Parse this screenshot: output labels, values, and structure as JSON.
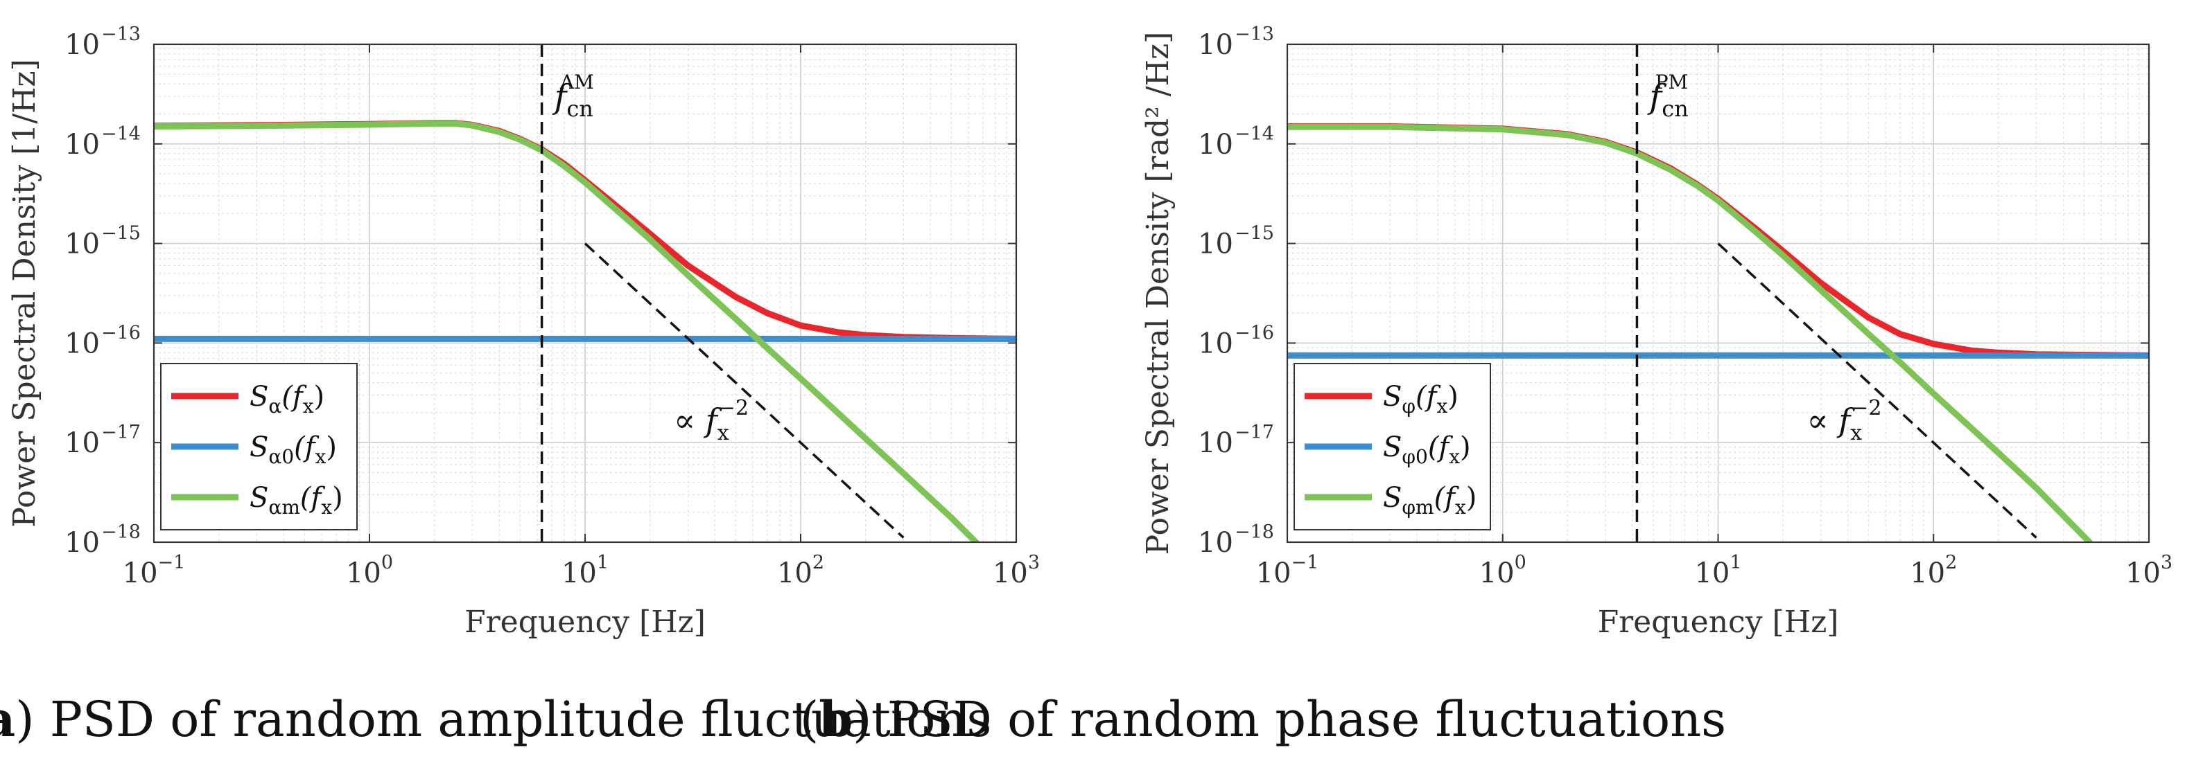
{
  "figure": {
    "panels": [
      {
        "caption_letter": "a",
        "caption_text": "PSD of random amplitude fluctuations"
      },
      {
        "caption_letter": "b",
        "caption_text": "PSD of random phase fluctuations"
      }
    ]
  },
  "chart_data": [
    {
      "type": "line",
      "xscale": "log",
      "yscale": "log",
      "xlim": [
        0.1,
        1000
      ],
      "ylim": [
        1e-18,
        1e-13
      ],
      "xlabel": "Frequency [Hz]",
      "ylabel": "Power Spectral Density [1/Hz]",
      "xticks": [
        0.1,
        1,
        10,
        100,
        1000
      ],
      "xtick_labels": [
        {
          "base": "10",
          "exp": "−1"
        },
        {
          "base": "10",
          "exp": "0"
        },
        {
          "base": "10",
          "exp": "1"
        },
        {
          "base": "10",
          "exp": "2"
        },
        {
          "base": "10",
          "exp": "3"
        }
      ],
      "yticks": [
        1e-18,
        1e-17,
        1e-16,
        1e-15,
        1e-14,
        1e-13
      ],
      "ytick_labels": [
        {
          "base": "10",
          "exp": "−18"
        },
        {
          "base": "10",
          "exp": "−17"
        },
        {
          "base": "10",
          "exp": "−16"
        },
        {
          "base": "10",
          "exp": "−15"
        },
        {
          "base": "10",
          "exp": "−14"
        },
        {
          "base": "10",
          "exp": "−13"
        }
      ],
      "grid": true,
      "legend_position": "bottom-left",
      "corner_frequency": 6.3,
      "corner_label": {
        "main": "f",
        "sub": "cn",
        "sup": "AM"
      },
      "slope_label": {
        "prefix": "∝ ",
        "main": "f",
        "sub": "x",
        "sup": "−2"
      },
      "slope_line": {
        "x": [
          10,
          300
        ],
        "y": [
          1e-15,
          1.11e-18
        ]
      },
      "series": [
        {
          "name": "S_α(f_x)",
          "legend": {
            "main": "S",
            "sub": "α",
            "arg": "(f",
            "argsub": "x",
            "close": ")"
          },
          "color": "#e8262b",
          "x": [
            0.1,
            0.3,
            1,
            2,
            2.5,
            3,
            4,
            5,
            6.3,
            8,
            10,
            15,
            20,
            30,
            50,
            70,
            100,
            150,
            200,
            300,
            500,
            1000
          ],
          "y": [
            1.52e-14,
            1.54e-14,
            1.58e-14,
            1.62e-14,
            1.62e-14,
            1.55e-14,
            1.35e-14,
            1.12e-14,
            8.8e-15,
            6.3e-15,
            4.3e-15,
            2.1e-15,
            1.25e-15,
            6e-16,
            2.9e-16,
            2e-16,
            1.5e-16,
            1.28e-16,
            1.2e-16,
            1.15e-16,
            1.12e-16,
            1.1e-16
          ]
        },
        {
          "name": "S_α0(f_x)",
          "legend": {
            "main": "S",
            "sub": "α0",
            "arg": "(f",
            "argsub": "x",
            "close": ")"
          },
          "color": "#3b8fd0",
          "x": [
            0.1,
            1000
          ],
          "y": [
            1.1e-16,
            1.1e-16
          ]
        },
        {
          "name": "S_αm(f_x)",
          "legend": {
            "main": "S",
            "sub": "αm",
            "arg": "(f",
            "argsub": "x",
            "close": ")"
          },
          "color": "#7dc355",
          "x": [
            0.1,
            0.3,
            1,
            2,
            2.5,
            3,
            4,
            5,
            6.3,
            8,
            10,
            15,
            20,
            30,
            50,
            70,
            100,
            200,
            300,
            500,
            650
          ],
          "y": [
            1.5e-14,
            1.52e-14,
            1.56e-14,
            1.6e-14,
            1.6e-14,
            1.53e-14,
            1.32e-14,
            1.1e-14,
            8.6e-15,
            6e-15,
            4.1e-15,
            1.9e-15,
            1.1e-15,
            4.8e-16,
            1.75e-16,
            8.9e-17,
            4.4e-17,
            1.1e-17,
            4.9e-18,
            1.76e-18,
            1e-18
          ]
        }
      ]
    },
    {
      "type": "line",
      "xscale": "log",
      "yscale": "log",
      "xlim": [
        0.1,
        1000
      ],
      "ylim": [
        1e-18,
        1e-13
      ],
      "xlabel": "Frequency [Hz]",
      "ylabel": "Power Spectral Density [rad² /Hz]",
      "xticks": [
        0.1,
        1,
        10,
        100,
        1000
      ],
      "xtick_labels": [
        {
          "base": "10",
          "exp": "−1"
        },
        {
          "base": "10",
          "exp": "0"
        },
        {
          "base": "10",
          "exp": "1"
        },
        {
          "base": "10",
          "exp": "2"
        },
        {
          "base": "10",
          "exp": "3"
        }
      ],
      "yticks": [
        1e-18,
        1e-17,
        1e-16,
        1e-15,
        1e-14,
        1e-13
      ],
      "ytick_labels": [
        {
          "base": "10",
          "exp": "−18"
        },
        {
          "base": "10",
          "exp": "−17"
        },
        {
          "base": "10",
          "exp": "−16"
        },
        {
          "base": "10",
          "exp": "−15"
        },
        {
          "base": "10",
          "exp": "−14"
        },
        {
          "base": "10",
          "exp": "−13"
        }
      ],
      "grid": true,
      "legend_position": "bottom-left",
      "corner_frequency": 4.2,
      "corner_label": {
        "main": "f",
        "sub": "cn",
        "sup": "PM"
      },
      "slope_label": {
        "prefix": "∝ ",
        "main": "f",
        "sub": "x",
        "sup": "−2"
      },
      "slope_line": {
        "x": [
          10,
          300
        ],
        "y": [
          1e-15,
          1.11e-18
        ]
      },
      "series": [
        {
          "name": "S_φ(f_x)",
          "legend": {
            "main": "S",
            "sub": "φ",
            "arg": "(f",
            "argsub": "x",
            "close": ")"
          },
          "color": "#e8262b",
          "x": [
            0.1,
            0.3,
            1,
            2,
            3,
            4.2,
            6,
            8,
            10,
            15,
            20,
            30,
            50,
            70,
            100,
            150,
            200,
            300,
            500,
            1000
          ],
          "y": [
            1.5e-14,
            1.5e-14,
            1.42e-14,
            1.25e-14,
            1.05e-14,
            8.2e-15,
            5.7e-15,
            3.9e-15,
            2.8e-15,
            1.4e-15,
            8.4e-16,
            4e-16,
            1.8e-16,
            1.23e-16,
            9.8e-17,
            8.4e-17,
            8e-17,
            7.7e-17,
            7.6e-17,
            7.5e-17
          ]
        },
        {
          "name": "S_φ0(f_x)",
          "legend": {
            "main": "S",
            "sub": "φ0",
            "arg": "(f",
            "argsub": "x",
            "close": ")"
          },
          "color": "#3b8fd0",
          "x": [
            0.1,
            1000
          ],
          "y": [
            7.5e-17,
            7.5e-17
          ]
        },
        {
          "name": "S_φm(f_x)",
          "legend": {
            "main": "S",
            "sub": "φm",
            "arg": "(f",
            "argsub": "x",
            "close": ")"
          },
          "color": "#7dc355",
          "x": [
            0.1,
            0.3,
            1,
            2,
            3,
            4.2,
            6,
            8,
            10,
            15,
            20,
            30,
            50,
            70,
            100,
            200,
            300,
            530
          ],
          "y": [
            1.48e-14,
            1.48e-14,
            1.4e-14,
            1.23e-14,
            1.03e-14,
            8e-15,
            5.5e-15,
            3.8e-15,
            2.7e-15,
            1.3e-15,
            7.6e-16,
            3.4e-16,
            1.23e-16,
            6.4e-17,
            3.1e-17,
            7.9e-18,
            3.5e-18,
            1e-18
          ]
        }
      ]
    }
  ]
}
